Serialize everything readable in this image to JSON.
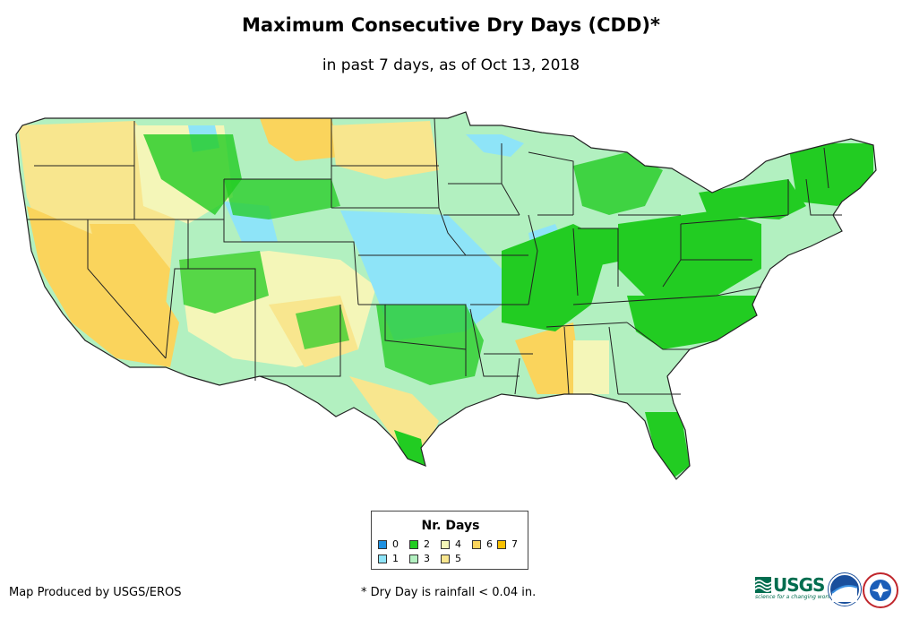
{
  "header": {
    "title": "Maximum Consecutive Dry Days (CDD)*",
    "subtitle": "in past 7 days, as of Oct 13, 2018"
  },
  "legend": {
    "title": "Nr. Days",
    "items": [
      {
        "label": "0",
        "color": "#1e90e0"
      },
      {
        "label": "1",
        "color": "#8ee4f8"
      },
      {
        "label": "2",
        "color": "#22cc22"
      },
      {
        "label": "3",
        "color": "#b2f0c0"
      },
      {
        "label": "4",
        "color": "#f4f6b8"
      },
      {
        "label": "5",
        "color": "#f8e68e"
      },
      {
        "label": "6",
        "color": "#fad45c"
      },
      {
        "label": "7",
        "color": "#f8c000"
      }
    ]
  },
  "footer": {
    "credit": "Map Produced by USGS/EROS",
    "note": "* Dry Day is rainfall < 0.04 in."
  },
  "logos": {
    "usgs_text": "USGS",
    "usgs_tagline": "science for a changing world",
    "logo_names": [
      "usgs-logo",
      "noaa-logo",
      "national-weather-service-logo"
    ]
  }
}
